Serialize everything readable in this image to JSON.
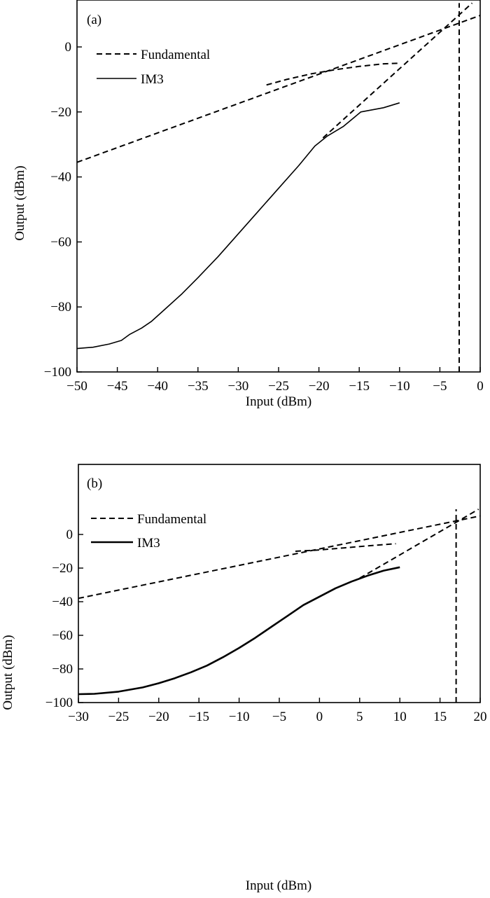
{
  "chart_data": [
    {
      "type": "line",
      "panel_label": "(a)",
      "xlabel": "Input (dBm)",
      "ylabel": "Output (dBm)",
      "xlim": [
        -50,
        0
      ],
      "ylim": [
        -100,
        0
      ],
      "xticks": [
        -50,
        -45,
        -40,
        -35,
        -30,
        -25,
        -20,
        -15,
        -10,
        -5,
        0
      ],
      "xtick_labels": [
        "−50",
        "−45",
        "−40",
        "−35",
        "−30",
        "−25",
        "−20",
        "−15",
        "−10",
        "−5",
        "0"
      ],
      "yticks": [
        -100,
        -80,
        -60,
        -40,
        -20,
        0
      ],
      "ytick_labels": [
        "−100",
        "−80",
        "−60",
        "−40",
        "−20",
        "0"
      ],
      "grid": false,
      "legend": [
        {
          "label": "Fundamental",
          "style": "dashed"
        },
        {
          "label": "IM3",
          "style": "solid"
        }
      ],
      "legend_position": "top-left",
      "series": [
        {
          "name": "Fundamental",
          "style": "dashed",
          "points": [
            [
              -50,
              -35.5
            ],
            [
              0,
              9.7
            ]
          ]
        },
        {
          "name": "Fundamental",
          "style": "dashed",
          "points": [
            [
              -26.5,
              -11.7
            ],
            [
              -24,
              -10
            ],
            [
              -21,
              -8.3
            ],
            [
              -18,
              -7
            ],
            [
              -15,
              -6
            ],
            [
              -12,
              -5.2
            ],
            [
              -10,
              -5
            ]
          ]
        },
        {
          "name": "IM3",
          "style": "dashed",
          "points": [
            [
              -19.5,
              -28
            ],
            [
              -1,
              13.5
            ]
          ]
        },
        {
          "name": "IM3",
          "style": "solid",
          "points": [
            [
              -50,
              -92.8
            ],
            [
              -48,
              -92.4
            ],
            [
              -46,
              -91.4
            ],
            [
              -44.5,
              -90.3
            ],
            [
              -43.5,
              -88.5
            ],
            [
              -42,
              -86.5
            ],
            [
              -40.8,
              -84.5
            ],
            [
              -39,
              -80.5
            ],
            [
              -37,
              -76
            ],
            [
              -35,
              -71
            ],
            [
              -32.5,
              -64.5
            ],
            [
              -30,
              -57.5
            ],
            [
              -27.5,
              -50.5
            ],
            [
              -25,
              -43.5
            ],
            [
              -22.5,
              -36.5
            ],
            [
              -20.5,
              -30.5
            ],
            [
              -19,
              -27.5
            ],
            [
              -17,
              -24.5
            ],
            [
              -14.8,
              -20
            ],
            [
              -12,
              -18.7
            ],
            [
              -10,
              -17.2
            ]
          ]
        },
        {
          "name": "intercept",
          "style": "dashed",
          "points": [
            [
              -2.6,
              -100
            ],
            [
              -2.6,
              13.5
            ]
          ]
        }
      ]
    },
    {
      "type": "line",
      "panel_label": "(b)",
      "xlabel": "Input (dBm)",
      "ylabel": "Output (dBm)",
      "xlim": [
        -30,
        20
      ],
      "ylim": [
        -100,
        0
      ],
      "xticks": [
        -30,
        -25,
        -20,
        -15,
        -10,
        -5,
        0,
        5,
        10,
        15,
        20
      ],
      "xtick_labels": [
        "−30",
        "−25",
        "−20",
        "−15",
        "−10",
        "−5",
        "0",
        "5",
        "10",
        "15",
        "20"
      ],
      "yticks": [
        -100,
        -80,
        -60,
        -40,
        -20,
        0
      ],
      "ytick_labels": [
        "−100",
        "−80",
        "−60",
        "−40",
        "−20",
        "0"
      ],
      "grid": false,
      "legend": [
        {
          "label": "Fundamental",
          "style": "dashed"
        },
        {
          "label": "IM3",
          "style": "solid"
        }
      ],
      "legend_position": "top-left",
      "series": [
        {
          "name": "Fundamental",
          "style": "dashed",
          "points": [
            [
              -30,
              -38
            ],
            [
              20,
              11
            ]
          ]
        },
        {
          "name": "Fundamental",
          "style": "dashed",
          "points": [
            [
              -3,
              -10
            ],
            [
              0,
              -9.2
            ],
            [
              3,
              -8
            ],
            [
              6,
              -6.8
            ],
            [
              9.5,
              -5.5
            ]
          ]
        },
        {
          "name": "IM3",
          "style": "dashed",
          "points": [
            [
              5,
              -26
            ],
            [
              19.8,
              15
            ]
          ]
        },
        {
          "name": "IM3",
          "style": "solid",
          "points": [
            [
              -30,
              -95
            ],
            [
              -28,
              -94.8
            ],
            [
              -25,
              -93.5
            ],
            [
              -22,
              -91
            ],
            [
              -20,
              -88.5
            ],
            [
              -18,
              -85.5
            ],
            [
              -16,
              -82
            ],
            [
              -14,
              -78
            ],
            [
              -12,
              -73
            ],
            [
              -10,
              -67.5
            ],
            [
              -8,
              -61.5
            ],
            [
              -6,
              -55
            ],
            [
              -4,
              -48.5
            ],
            [
              -2,
              -42
            ],
            [
              0,
              -37
            ],
            [
              2,
              -32
            ],
            [
              4,
              -28
            ],
            [
              6,
              -24.5
            ],
            [
              8,
              -21.5
            ],
            [
              10,
              -19.5
            ]
          ]
        },
        {
          "name": "intercept",
          "style": "dashed",
          "points": [
            [
              17,
              -100
            ],
            [
              17,
              15
            ]
          ]
        }
      ]
    }
  ]
}
